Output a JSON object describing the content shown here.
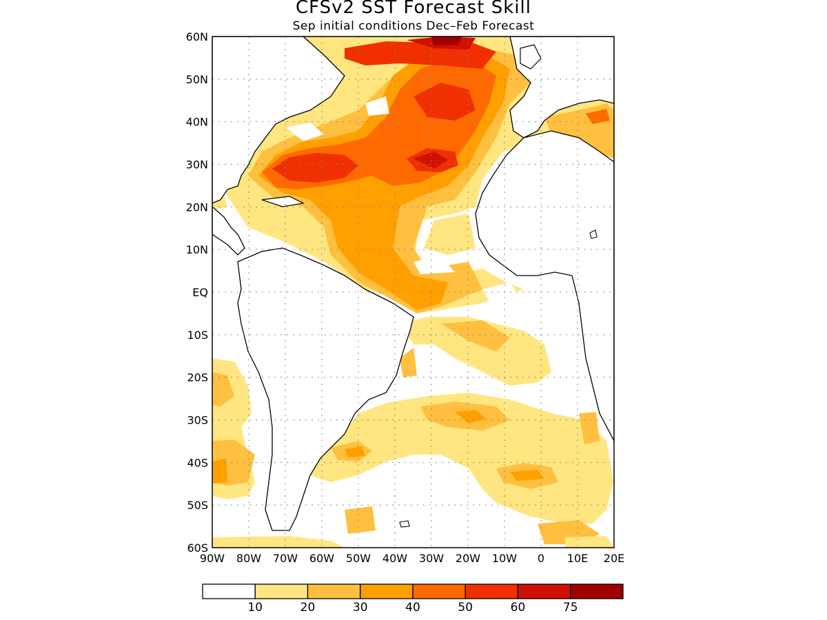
{
  "header": {
    "title": "CFSv2 SST Forecast Skill",
    "subtitle": "Sep initial conditions  Dec–Feb Forecast"
  },
  "map": {
    "lon_range": [
      -90,
      20
    ],
    "lat_range": [
      -60,
      60
    ],
    "lat_labels": [
      "60N",
      "50N",
      "40N",
      "30N",
      "20N",
      "10N",
      "EQ",
      "10S",
      "20S",
      "30S",
      "40S",
      "50S",
      "60S"
    ],
    "lon_labels": [
      "90W",
      "80W",
      "70W",
      "60W",
      "50W",
      "40W",
      "30W",
      "20W",
      "10W",
      "0",
      "10E",
      "20E"
    ],
    "grid": "dotted",
    "ocean_fill": "#ffffff",
    "coastline_color": "#000000"
  },
  "colorbar": {
    "levels": [
      "10",
      "20",
      "30",
      "40",
      "50",
      "60",
      "75"
    ],
    "colors": [
      "#ffffff",
      "#ffe680",
      "#ffbf3f",
      "#ff9f00",
      "#ff6a00",
      "#f03000",
      "#d01000",
      "#a00000"
    ]
  }
}
